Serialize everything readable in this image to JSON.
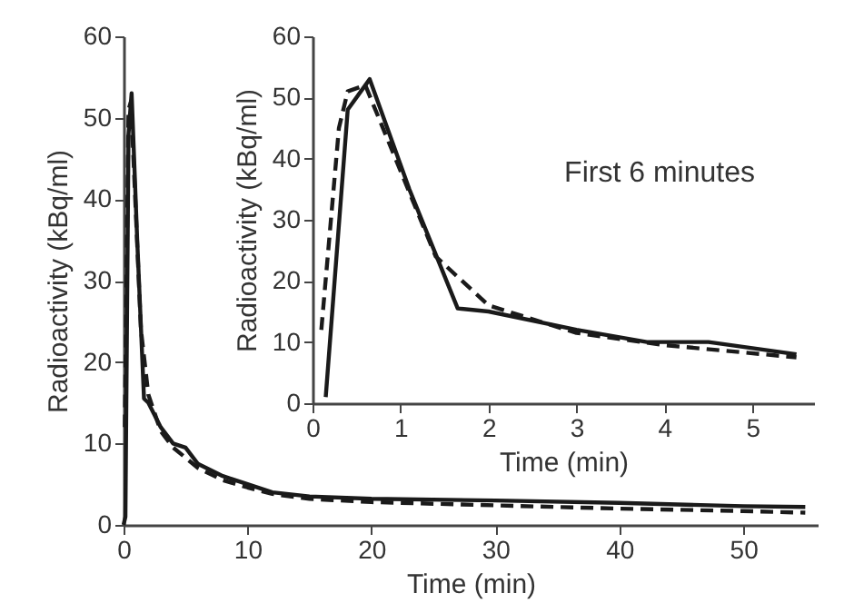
{
  "chart_data": [
    {
      "type": "line",
      "xlabel": "Time (min)",
      "ylabel": "Radioactivity  (kBq/ml)",
      "xlim": [
        0,
        56
      ],
      "ylim": [
        0,
        60
      ],
      "xticks": [
        0,
        10,
        20,
        30,
        40,
        50
      ],
      "yticks": [
        0,
        10,
        20,
        30,
        40,
        50,
        60
      ],
      "grid": false,
      "series": [
        {
          "color": "#1a1a1a",
          "line_style": "solid",
          "x": [
            0,
            0.15,
            0.4,
            0.65,
            1.1,
            1.65,
            2,
            3,
            4,
            5,
            6,
            8,
            10,
            12,
            15,
            20,
            30,
            40,
            50,
            55
          ],
          "values": [
            0,
            1,
            48,
            53,
            35,
            15.5,
            15,
            12,
            10,
            9.5,
            7.5,
            6,
            5,
            4,
            3.5,
            3.2,
            3,
            2.7,
            2.3,
            2.2
          ]
        },
        {
          "color": "#1a1a1a",
          "line_style": "dashed",
          "x": [
            0.1,
            0.4,
            0.6,
            1,
            1.4,
            2,
            3,
            4,
            6,
            8,
            10,
            12,
            15,
            20,
            30,
            40,
            50,
            55
          ],
          "values": [
            12,
            51,
            52,
            38,
            24,
            16,
            11.5,
            9.5,
            7,
            5.5,
            4.6,
            3.8,
            3.2,
            2.8,
            2.4,
            2,
            1.7,
            1.5
          ]
        }
      ]
    },
    {
      "type": "line",
      "xlabel": "Time (min)",
      "ylabel": "Radioactivity  (kBq/ml)",
      "annotations": [
        "First 6 minutes"
      ],
      "xlim": [
        0,
        5.7
      ],
      "ylim": [
        0,
        60
      ],
      "xticks": [
        0,
        1,
        2,
        3,
        4,
        5
      ],
      "yticks": [
        0,
        10,
        20,
        30,
        40,
        50,
        60
      ],
      "grid": false,
      "series": [
        {
          "color": "#1a1a1a",
          "line_style": "solid",
          "x": [
            0.15,
            0.4,
            0.65,
            1.1,
            1.65,
            2,
            3,
            3.8,
            4.5,
            5.5
          ],
          "values": [
            1,
            48,
            53,
            35,
            15.5,
            15,
            12,
            10,
            10,
            8
          ]
        },
        {
          "color": "#1a1a1a",
          "line_style": "dashed",
          "x": [
            0.1,
            0.3,
            0.4,
            0.6,
            1,
            1.4,
            2,
            3,
            4,
            5.5
          ],
          "values": [
            12,
            45,
            51,
            52,
            38,
            24,
            16,
            11.5,
            9.5,
            7.5
          ]
        }
      ]
    }
  ]
}
